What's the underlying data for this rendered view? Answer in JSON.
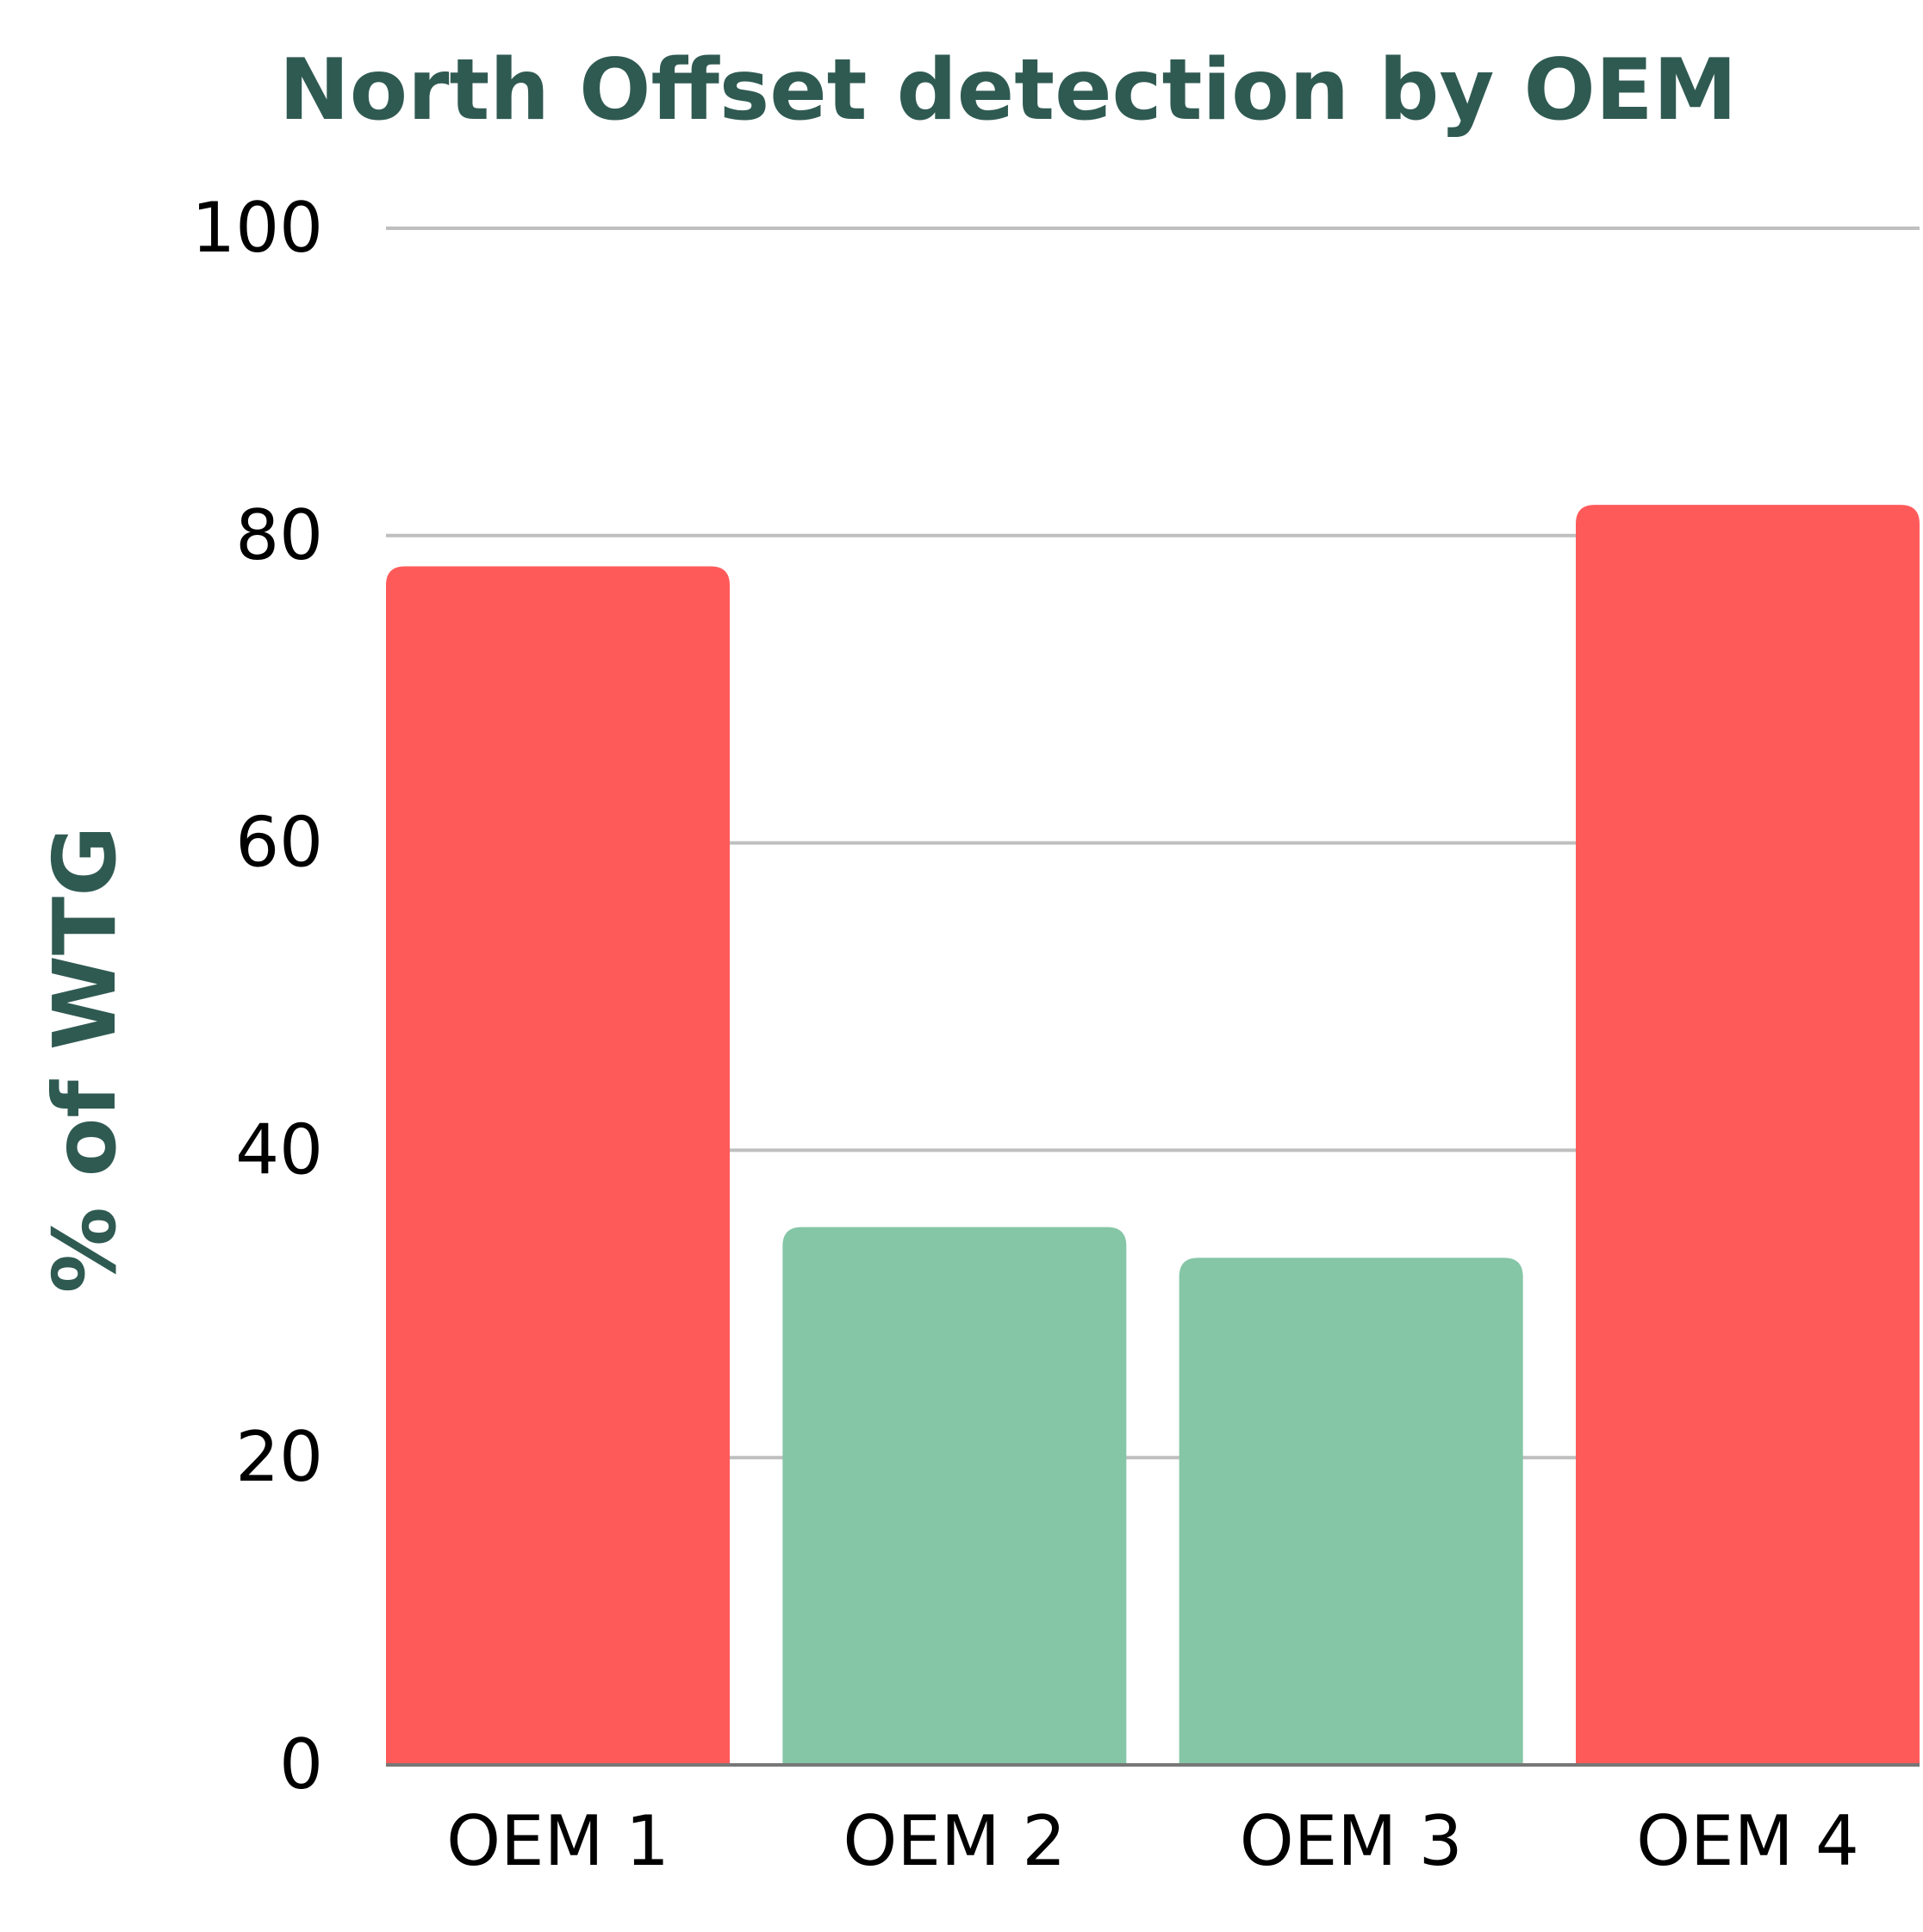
{
  "chart_data": {
    "type": "bar",
    "title": "North Offset detection by OEM",
    "xlabel": "",
    "ylabel": "% of WTG",
    "categories": [
      "OEM 1",
      "OEM 2",
      "OEM 3",
      "OEM 4"
    ],
    "values": [
      78,
      35,
      33,
      82
    ],
    "ylim": [
      0,
      100
    ],
    "yticks": [
      0,
      20,
      40,
      60,
      80,
      100
    ],
    "grid": true,
    "legend": "none",
    "bar_colors": [
      "#FF5A5A",
      "#85C6A7",
      "#85C6A7",
      "#FF5A5A"
    ],
    "title_color": "#2F5A52",
    "ylabel_color": "#2F5A52",
    "grid_color": "#BFBFBF",
    "axis_color": "#777777",
    "tick_color": "#000000"
  }
}
